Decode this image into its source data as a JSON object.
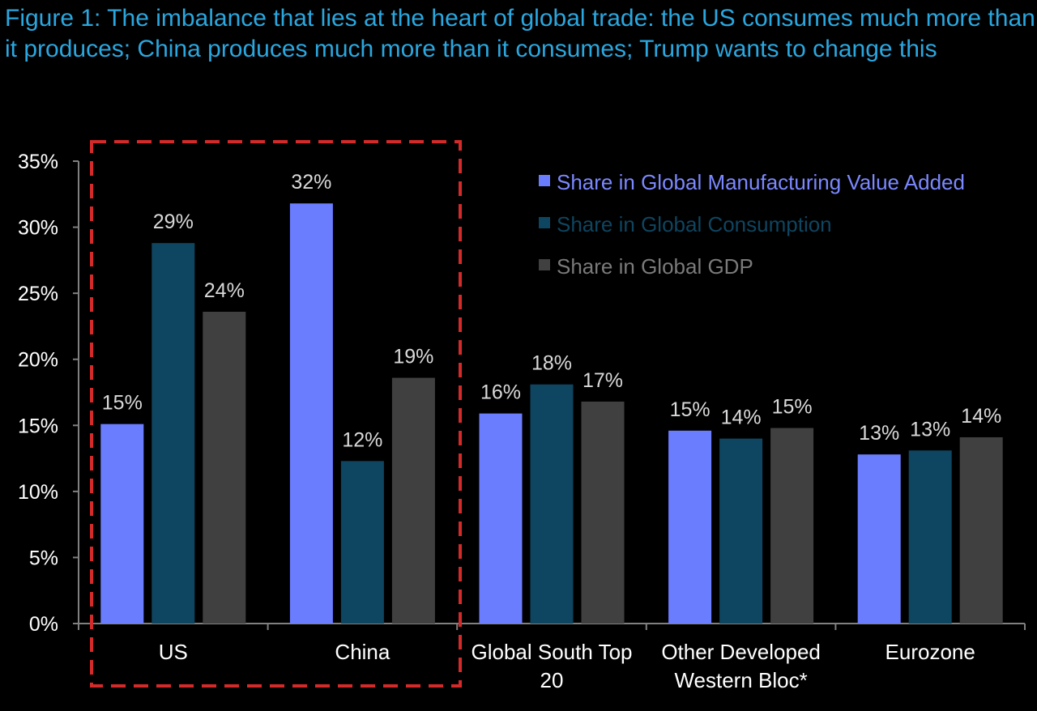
{
  "chart_data": {
    "type": "bar",
    "title": "Figure 1: The imbalance that lies at the heart of global trade: the US consumes much more than it produces; China produces much more than it consumes; Trump wants to change this",
    "categories": [
      [
        "US"
      ],
      [
        "China"
      ],
      [
        "Global South Top",
        "20"
      ],
      [
        "Other Developed",
        "Western Bloc*"
      ],
      [
        "Eurozone"
      ]
    ],
    "series": [
      {
        "name": "Share in Global Manufacturing Value Added",
        "color": "#6b7dff",
        "values": [
          15.1,
          31.8,
          15.9,
          14.6,
          12.8
        ],
        "labels": [
          "15%",
          "32%",
          "16%",
          "15%",
          "13%"
        ]
      },
      {
        "name": "Share in Global Consumption",
        "color": "#0e4560",
        "values": [
          28.8,
          12.3,
          18.1,
          14.0,
          13.1
        ],
        "labels": [
          "29%",
          "12%",
          "18%",
          "14%",
          "13%"
        ]
      },
      {
        "name": "Share in Global GDP",
        "color": "#404040",
        "values": [
          23.6,
          18.6,
          16.8,
          14.8,
          14.1
        ],
        "labels": [
          "24%",
          "19%",
          "17%",
          "15%",
          "14%"
        ]
      }
    ],
    "ylim": [
      0,
      35
    ],
    "y_ticks": [
      "0%",
      "5%",
      "10%",
      "15%",
      "20%",
      "25%",
      "30%",
      "35%"
    ],
    "xlabel": "",
    "ylabel": "",
    "legend": {
      "placement": "top-right",
      "text_colors": [
        "#7b88ff",
        "#0e4560",
        "#7a7a7a"
      ]
    },
    "highlight_box": {
      "color": "#d42a2a",
      "covers_categories": [
        "US",
        "China"
      ],
      "style": "dashed"
    },
    "grid": false,
    "axis_color": "#808080"
  }
}
